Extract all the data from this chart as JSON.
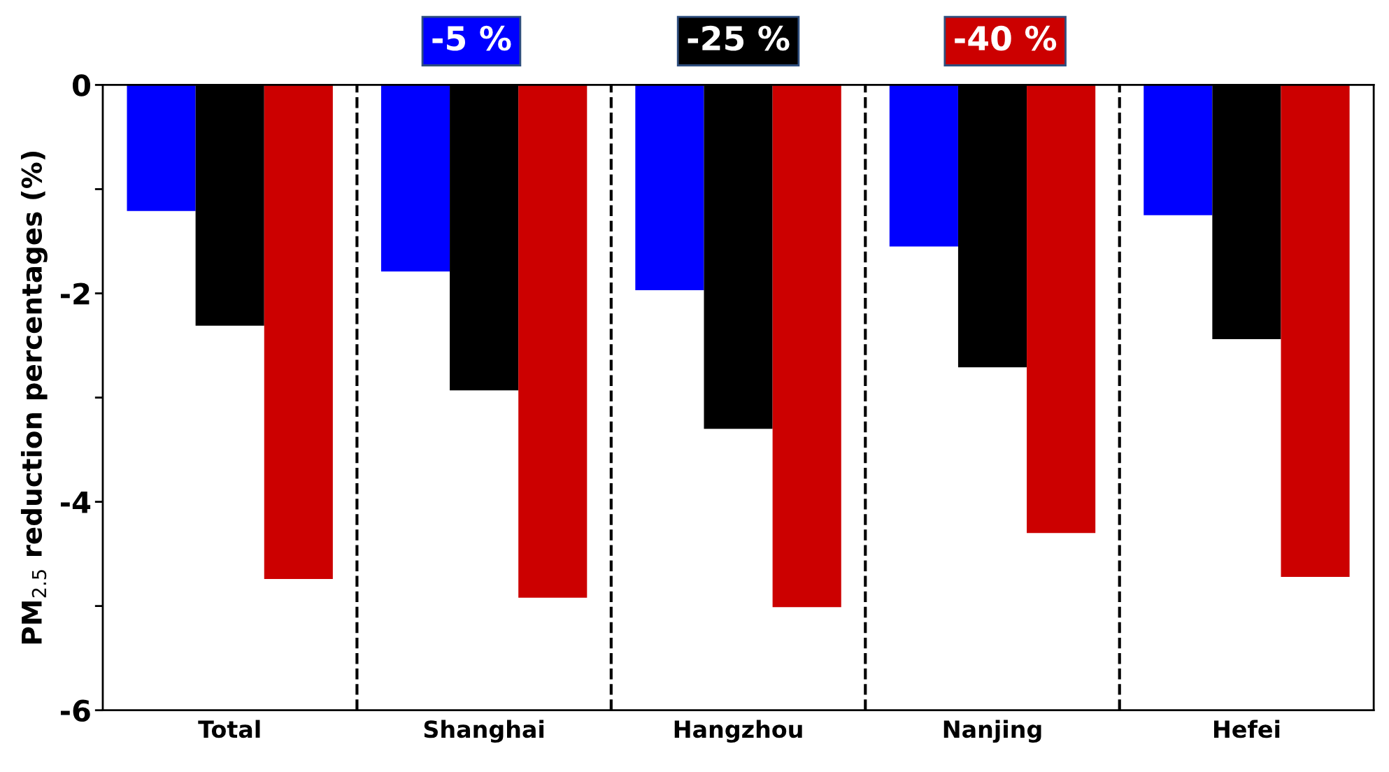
{
  "chart_data": {
    "type": "bar",
    "ylabel": "PM$_{2.5}$ reduction percentages (%)",
    "categories": [
      "Total",
      "Shanghai",
      "Hangzhou",
      "Nanjing",
      "Hefei"
    ],
    "series": [
      {
        "name": "-5 %",
        "color": "#0000ff",
        "values": [
          -1.21,
          -1.79,
          -1.97,
          -1.55,
          -1.25
        ]
      },
      {
        "name": "-25 %",
        "color": "#000000",
        "values": [
          -2.31,
          -2.93,
          -3.3,
          -2.71,
          -2.44
        ]
      },
      {
        "name": "-40 %",
        "color": "#cc0000",
        "values": [
          -4.74,
          -4.92,
          -5.01,
          -4.3,
          -4.72
        ]
      }
    ],
    "ylim": [
      -6,
      0
    ],
    "yticks": [
      0,
      {
        "value": -1,
        "label": null
      },
      -2,
      {
        "value": -3,
        "label": null
      },
      -4,
      {
        "value": -5,
        "label": null
      },
      -6
    ],
    "legend": "top",
    "grid": false
  }
}
